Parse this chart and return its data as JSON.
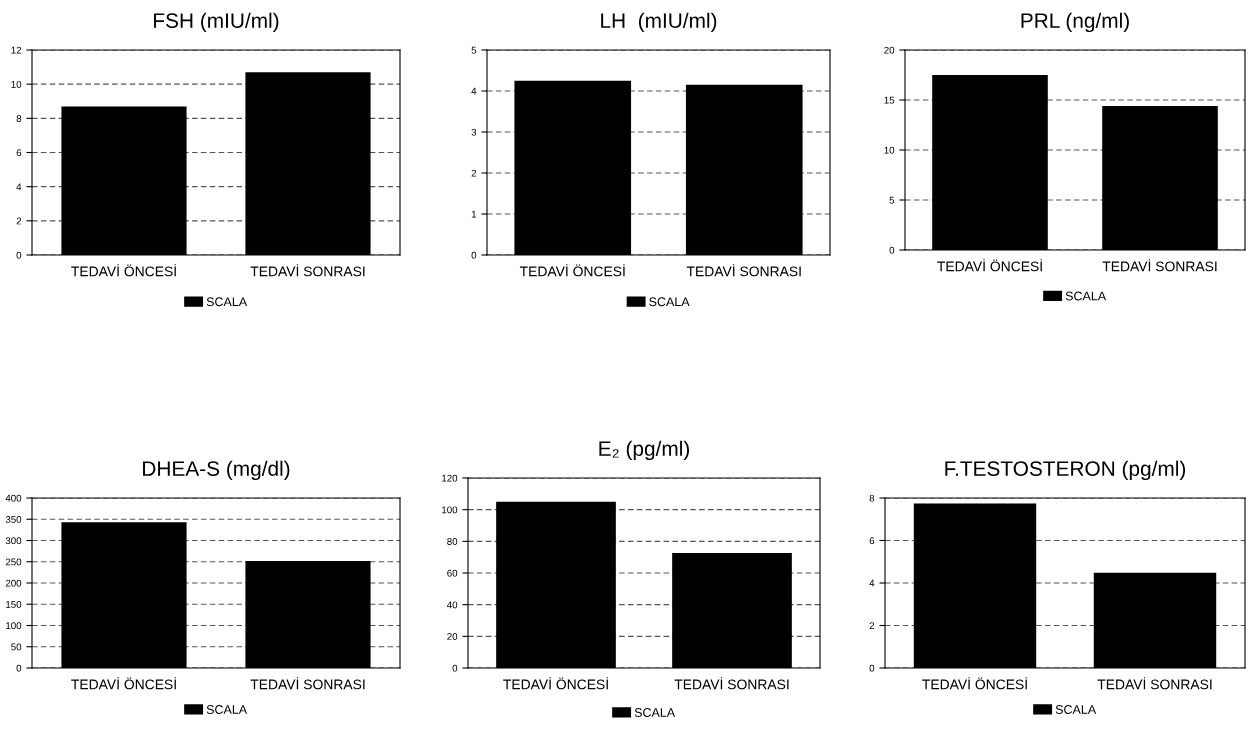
{
  "chart_data": [
    {
      "type": "bar",
      "title": "FSH (mIU/ml)",
      "categories": [
        "TEDAVİ ÖNCESİ",
        "TEDAVİ SONRASI"
      ],
      "series": [
        {
          "name": "SCALA",
          "color": "#000000",
          "values": [
            8.7,
            10.7
          ]
        }
      ],
      "ylim": [
        0,
        12
      ],
      "yticks": [
        0,
        2,
        4,
        6,
        8,
        10,
        12
      ],
      "grid": "y",
      "legend": "bottom"
    },
    {
      "type": "bar",
      "title": "LH  (mIU/ml)",
      "categories": [
        "TEDAVİ ÖNCESİ",
        "TEDAVİ SONRASI"
      ],
      "series": [
        {
          "name": "SCALA",
          "color": "#000000",
          "values": [
            4.25,
            4.15
          ]
        }
      ],
      "ylim": [
        0,
        5
      ],
      "yticks": [
        0,
        1,
        2,
        3,
        4,
        5
      ],
      "grid": "y",
      "legend": "bottom"
    },
    {
      "type": "bar",
      "title": "PRL (ng/ml)",
      "categories": [
        "TEDAVİ ÖNCESİ",
        "TEDAVİ SONRASI"
      ],
      "series": [
        {
          "name": "SCALA",
          "color": "#000000",
          "values": [
            17.5,
            14.4
          ]
        }
      ],
      "ylim": [
        0,
        20
      ],
      "yticks": [
        0,
        5,
        10,
        15,
        20
      ],
      "grid": "y",
      "legend": "bottom"
    },
    {
      "type": "bar",
      "title": "DHEA-S (mg/dl)",
      "categories": [
        "TEDAVİ ÖNCESİ",
        "TEDAVİ SONRASI"
      ],
      "series": [
        {
          "name": "SCALA",
          "color": "#000000",
          "values": [
            343,
            252
          ]
        }
      ],
      "ylim": [
        0,
        400
      ],
      "yticks": [
        0,
        50,
        100,
        150,
        200,
        250,
        300,
        350,
        400
      ],
      "grid": "y",
      "legend": "bottom"
    },
    {
      "type": "bar",
      "title": "E₂ (pg/ml)",
      "categories": [
        "TEDAVİ ÖNCESİ",
        "TEDAVİ SONRASI"
      ],
      "series": [
        {
          "name": "SCALA",
          "color": "#000000",
          "values": [
            105,
            72.6
          ]
        }
      ],
      "ylim": [
        0,
        120
      ],
      "yticks": [
        0,
        20,
        40,
        60,
        80,
        100,
        120
      ],
      "grid": "y",
      "legend": "bottom"
    },
    {
      "type": "bar",
      "title": "F.TESTOSTERON (pg/ml)",
      "categories": [
        "TEDAVİ ÖNCESİ",
        "TEDAVİ SONRASI"
      ],
      "series": [
        {
          "name": "SCALA",
          "color": "#000000",
          "values": [
            7.74,
            4.48
          ]
        }
      ],
      "ylim": [
        0,
        8
      ],
      "yticks": [
        0,
        2,
        4,
        6,
        8
      ],
      "grid": "y",
      "legend": "bottom"
    }
  ]
}
